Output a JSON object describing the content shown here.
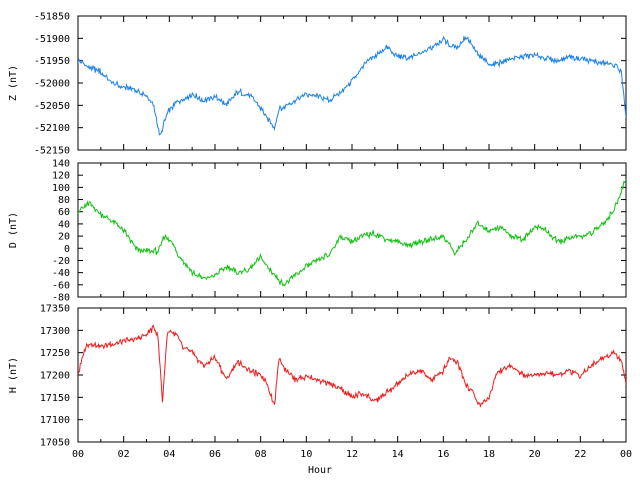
{
  "chart_data": [
    {
      "type": "line",
      "id": "z",
      "ylabel": "Z (nT)",
      "ylim": [
        -52150,
        -51850
      ],
      "yticks": [
        -51850,
        -51900,
        -51950,
        -52000,
        -52050,
        -52100,
        -52150
      ],
      "color": "#1e82e6",
      "series": [
        {
          "x": [
            0,
            0.5,
            1,
            1.5,
            2,
            2.5,
            3,
            3.3,
            3.6,
            3.8,
            4,
            4.3,
            4.6,
            5,
            5.5,
            6,
            6.5,
            7,
            7.5,
            8,
            8.3,
            8.6,
            8.8,
            9,
            9.5,
            10,
            10.5,
            11,
            11.5,
            12,
            12.5,
            13,
            13.5,
            14,
            14.5,
            15,
            15.5,
            16,
            16.3,
            16.6,
            17,
            17.5,
            18,
            18.5,
            19,
            19.5,
            20,
            20.5,
            21,
            21.5,
            22,
            22.5,
            23,
            23.5,
            23.8,
            24
          ],
          "y": [
            -51950,
            -51965,
            -51975,
            -52000,
            -52010,
            -52015,
            -52030,
            -52050,
            -52120,
            -52085,
            -52060,
            -52045,
            -52035,
            -52025,
            -52040,
            -52030,
            -52050,
            -52020,
            -52025,
            -52055,
            -52080,
            -52100,
            -52060,
            -52055,
            -52040,
            -52025,
            -52030,
            -52040,
            -52020,
            -51995,
            -51960,
            -51940,
            -51920,
            -51940,
            -51945,
            -51935,
            -51920,
            -51900,
            -51915,
            -51920,
            -51895,
            -51935,
            -51960,
            -51955,
            -51945,
            -51940,
            -51940,
            -51945,
            -51950,
            -51940,
            -51945,
            -51950,
            -51955,
            -51960,
            -51975,
            -52080
          ]
        }
      ]
    },
    {
      "type": "line",
      "id": "d",
      "ylabel": "D (nT)",
      "ylim": [
        -80,
        140
      ],
      "yticks": [
        140,
        120,
        100,
        80,
        60,
        40,
        20,
        0,
        -20,
        -40,
        -60,
        -80
      ],
      "color": "#11c011",
      "series": [
        {
          "x": [
            0,
            0.5,
            1,
            1.5,
            2,
            2.5,
            3,
            3.5,
            3.8,
            4,
            4.3,
            4.6,
            5,
            5.5,
            6,
            6.5,
            7,
            7.5,
            8,
            8.5,
            9,
            9.5,
            10,
            10.5,
            11,
            11.5,
            12,
            12.5,
            13,
            13.5,
            14,
            14.5,
            15,
            15.5,
            16,
            16.3,
            16.5,
            17,
            17.5,
            18,
            18.5,
            19,
            19.5,
            20,
            20.5,
            21,
            21.5,
            22,
            22.5,
            23,
            23.5,
            24
          ],
          "y": [
            60,
            75,
            55,
            45,
            30,
            0,
            -5,
            -5,
            20,
            15,
            -5,
            -20,
            -40,
            -50,
            -45,
            -30,
            -40,
            -35,
            -15,
            -40,
            -60,
            -45,
            -30,
            -20,
            -10,
            20,
            10,
            20,
            25,
            15,
            10,
            5,
            10,
            15,
            20,
            5,
            -10,
            15,
            40,
            30,
            35,
            20,
            15,
            35,
            30,
            10,
            15,
            20,
            25,
            40,
            65,
            115
          ]
        }
      ]
    },
    {
      "type": "line",
      "id": "h",
      "ylabel": "H (nT)",
      "xlabel": "Hour",
      "ylim": [
        17050,
        17350
      ],
      "yticks": [
        17350,
        17300,
        17250,
        17200,
        17150,
        17100,
        17050
      ],
      "xticks": [
        "00",
        "02",
        "04",
        "06",
        "08",
        "10",
        "12",
        "14",
        "16",
        "18",
        "20",
        "22",
        "00"
      ],
      "xlim": [
        0,
        24
      ],
      "color": "#ee1c1c",
      "series": [
        {
          "x": [
            0,
            0.3,
            0.5,
            1,
            1.5,
            2,
            2.5,
            3,
            3.3,
            3.5,
            3.7,
            3.9,
            4,
            4.3,
            4.6,
            5,
            5.5,
            6,
            6.5,
            7,
            7.5,
            8,
            8.3,
            8.6,
            8.8,
            9,
            9.5,
            10,
            10.5,
            11,
            11.5,
            12,
            12.5,
            13,
            13.5,
            14,
            14.5,
            15,
            15.5,
            16,
            16.3,
            16.6,
            17,
            17.3,
            17.6,
            18,
            18.3,
            18.5,
            19,
            19.5,
            20,
            20.5,
            21,
            21.5,
            22,
            22.5,
            23,
            23.5,
            23.8,
            24
          ],
          "y": [
            17200,
            17260,
            17270,
            17265,
            17270,
            17275,
            17280,
            17290,
            17305,
            17290,
            17140,
            17290,
            17300,
            17290,
            17260,
            17250,
            17220,
            17240,
            17190,
            17230,
            17210,
            17200,
            17180,
            17130,
            17240,
            17220,
            17190,
            17195,
            17190,
            17180,
            17170,
            17150,
            17160,
            17140,
            17160,
            17180,
            17200,
            17210,
            17190,
            17210,
            17240,
            17230,
            17180,
            17160,
            17130,
            17150,
            17200,
            17210,
            17220,
            17200,
            17200,
            17205,
            17200,
            17210,
            17200,
            17220,
            17240,
            17250,
            17230,
            17180
          ]
        }
      ]
    }
  ]
}
